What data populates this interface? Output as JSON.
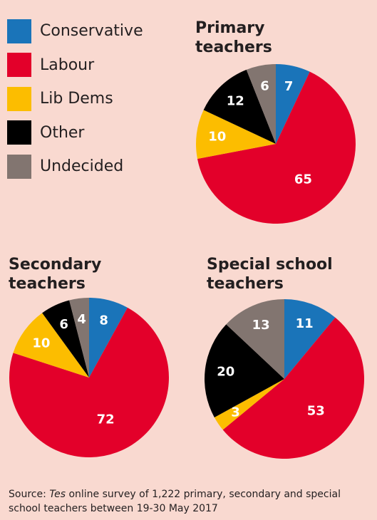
{
  "colors": {
    "Conservative": "#1a74b9",
    "Labour": "#e3002a",
    "Lib Dems": "#fcbd00",
    "Other": "#000000",
    "Undecided": "#827570"
  },
  "legend": [
    "Conservative",
    "Labour",
    "Lib Dems",
    "Other",
    "Undecided"
  ],
  "chart_data": [
    {
      "type": "pie",
      "title": "Primary teachers",
      "title_lines": [
        "Primary",
        "teachers"
      ],
      "categories": [
        "Conservative",
        "Labour",
        "Lib Dems",
        "Other",
        "Undecided"
      ],
      "values": [
        7,
        65,
        10,
        12,
        6
      ]
    },
    {
      "type": "pie",
      "title": "Secondary teachers",
      "title_lines": [
        "Secondary",
        "teachers"
      ],
      "categories": [
        "Conservative",
        "Labour",
        "Lib Dems",
        "Other",
        "Undecided"
      ],
      "values": [
        8,
        72,
        10,
        6,
        4
      ]
    },
    {
      "type": "pie",
      "title": "Special school teachers",
      "title_lines": [
        "Special school",
        "teachers"
      ],
      "categories": [
        "Conservative",
        "Labour",
        "Lib Dems",
        "Other",
        "Undecided"
      ],
      "values": [
        11,
        53,
        3,
        20,
        13
      ]
    }
  ],
  "source": {
    "prefix": "Source: ",
    "publication": "Tes",
    "text": " online survey of 1,222 primary, secondary and special school teachers between 19-30 May 2017"
  }
}
